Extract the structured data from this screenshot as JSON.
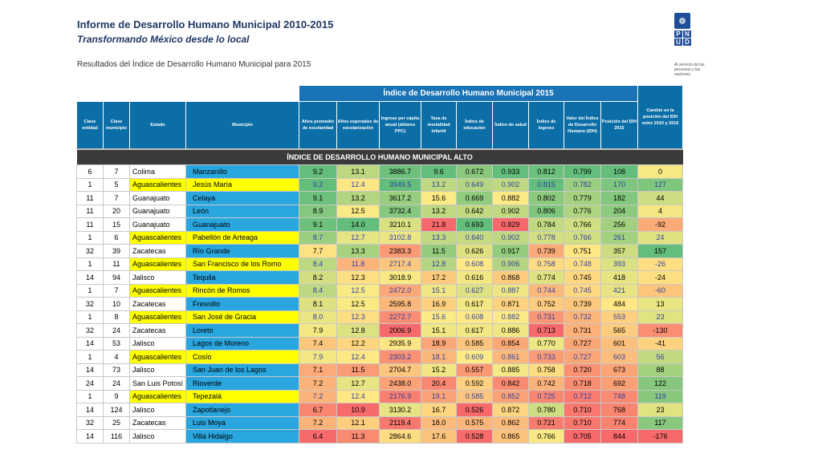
{
  "header": {
    "title": "Informe de Desarrollo Humano Municipal 2010-2015",
    "subtitle": "Transformando México desde lo local",
    "caption": "Resultados del Índice de Desarrollo Humano Municipal para 2015"
  },
  "logo": {
    "letters": [
      "P",
      "N",
      "U",
      "D"
    ],
    "tagline": "Al servicio de las personas y las naciones"
  },
  "table": {
    "group_header": "Índice de Desarrollo Humano Municipal 2015",
    "columns": [
      "Clave entidad",
      "Clave municipio",
      "Estado",
      "Municipio",
      "Años promedio de escolaridad",
      "Años esperados de escolarización",
      "Ingreso per cápita anual (dólares PPC)",
      "Tasa de mortalidad infantil",
      "Índice de educación",
      "Índice de salud",
      "Índice de ingreso",
      "Valor del Índice de Desarrollo Humano (IDH)",
      "Posición del IDH 2015",
      "Cambio en la posición del IDH entre 2010 y 2015"
    ],
    "section_label": "ÍNDICE DE DESARROLLO HUMANO MUNICIPAL ALTO",
    "rows": [
      [
        "6",
        "7",
        "Colima",
        "Manzanillo",
        "9.2",
        "13.1",
        "3886.7",
        "9.6",
        "0.672",
        "0.933",
        "0.812",
        "0.799",
        "108",
        "0"
      ],
      [
        "1",
        "5",
        "Aguascalientes",
        "Jesús María",
        "9.2",
        "12.4",
        "3949.5",
        "13.2",
        "0.649",
        "0.902",
        "0.815",
        "0.782",
        "170",
        "127"
      ],
      [
        "11",
        "7",
        "Guanajuato",
        "Celaya",
        "9.1",
        "13.2",
        "3617.2",
        "15.6",
        "0.669",
        "0.882",
        "0.802",
        "0.779",
        "182",
        "44"
      ],
      [
        "11",
        "20",
        "Guanajuato",
        "León",
        "8.9",
        "12.5",
        "3732.4",
        "13.2",
        "0.642",
        "0.902",
        "0.806",
        "0.776",
        "204",
        "4"
      ],
      [
        "11",
        "15",
        "Guanajuato",
        "Guanajuato",
        "9.1",
        "14.0",
        "3210.1",
        "21.8",
        "0.693",
        "0.829",
        "0.784",
        "0.766",
        "256",
        "-92"
      ],
      [
        "1",
        "6",
        "Aguascalientes",
        "Pabellón de Arteaga",
        "8.7",
        "12.7",
        "3102.8",
        "13.3",
        "0.640",
        "0.902",
        "0.778",
        "0.766",
        "261",
        "24"
      ],
      [
        "32",
        "39",
        "Zacatecas",
        "Río Grande",
        "7.7",
        "13.3",
        "2383.3",
        "11.5",
        "0.626",
        "0.917",
        "0.739",
        "0.751",
        "357",
        "157"
      ],
      [
        "1",
        "11",
        "Aguascalientes",
        "San Francisco de los Romo",
        "8.4",
        "11.8",
        "2717.4",
        "12.8",
        "0.608",
        "0.906",
        "0.758",
        "0.748",
        "393",
        "-26"
      ],
      [
        "14",
        "94",
        "Jalisco",
        "Tequila",
        "8.2",
        "12.3",
        "3018.9",
        "17.2",
        "0.616",
        "0.868",
        "0.774",
        "0.745",
        "418",
        "-24"
      ],
      [
        "1",
        "7",
        "Aguascalientes",
        "Rincón de Romos",
        "8.4",
        "12.5",
        "2472.0",
        "15.1",
        "0.627",
        "0.887",
        "0.744",
        "0.745",
        "421",
        "-60"
      ],
      [
        "32",
        "10",
        "Zacatecas",
        "Fresnillo",
        "8.1",
        "12.5",
        "2595.8",
        "16.9",
        "0.617",
        "0.871",
        "0.752",
        "0.739",
        "484",
        "13"
      ],
      [
        "1",
        "8",
        "Aguascalientes",
        "San José de Gracia",
        "8.0",
        "12.3",
        "2272.7",
        "15.6",
        "0.608",
        "0.882",
        "0.731",
        "0.732",
        "553",
        "23"
      ],
      [
        "32",
        "24",
        "Zacatecas",
        "Loreto",
        "7.9",
        "12.8",
        "2006.9",
        "15.1",
        "0.617",
        "0.886",
        "0.713",
        "0.731",
        "565",
        "-130"
      ],
      [
        "14",
        "53",
        "Jalisco",
        "Lagos de Moreno",
        "7.4",
        "12.2",
        "2935.9",
        "18.9",
        "0.585",
        "0.854",
        "0.770",
        "0.727",
        "601",
        "-41"
      ],
      [
        "1",
        "4",
        "Aguascalientes",
        "Cosío",
        "7.9",
        "12.4",
        "2303.2",
        "18.1",
        "0.609",
        "0.861",
        "0.733",
        "0.727",
        "603",
        "56"
      ],
      [
        "14",
        "73",
        "Jalisco",
        "San Juan de los Lagos",
        "7.1",
        "11.5",
        "2704.7",
        "15.2",
        "0.557",
        "0.885",
        "0.758",
        "0.720",
        "673",
        "88"
      ],
      [
        "24",
        "24",
        "San Luis Potosí",
        "Rioverde",
        "7.2",
        "12.7",
        "2438.0",
        "20.4",
        "0.592",
        "0.842",
        "0.742",
        "0.718",
        "692",
        "122"
      ],
      [
        "1",
        "9",
        "Aguascalientes",
        "Tepezalá",
        "7.2",
        "12.4",
        "2176.9",
        "19.1",
        "0.585",
        "0.852",
        "0.725",
        "0.712",
        "748",
        "119"
      ],
      [
        "14",
        "124",
        "Jalisco",
        "Zapotlanejo",
        "6.7",
        "10.9",
        "3130.2",
        "16.7",
        "0.526",
        "0.872",
        "0.780",
        "0.710",
        "768",
        "23"
      ],
      [
        "32",
        "25",
        "Zacatecas",
        "Luis Moya",
        "7.2",
        "12.1",
        "2119.4",
        "18.0",
        "0.575",
        "0.862",
        "0.721",
        "0.710",
        "774",
        "117"
      ],
      [
        "14",
        "116",
        "Jalisco",
        "Villa Hidalgo",
        "6.4",
        "11.3",
        "2864.6",
        "17.6",
        "0.528",
        "0.865",
        "0.766",
        "0.705",
        "844",
        "-176"
      ]
    ]
  },
  "colors": {
    "header_bg": "#0b6ea6",
    "municipio_bg": "#2aa6df",
    "aguascalientes_bg": "#ffff00",
    "scale_low": "#f8696b",
    "scale_mid": "#ffeb84",
    "scale_high": "#63be7b"
  }
}
